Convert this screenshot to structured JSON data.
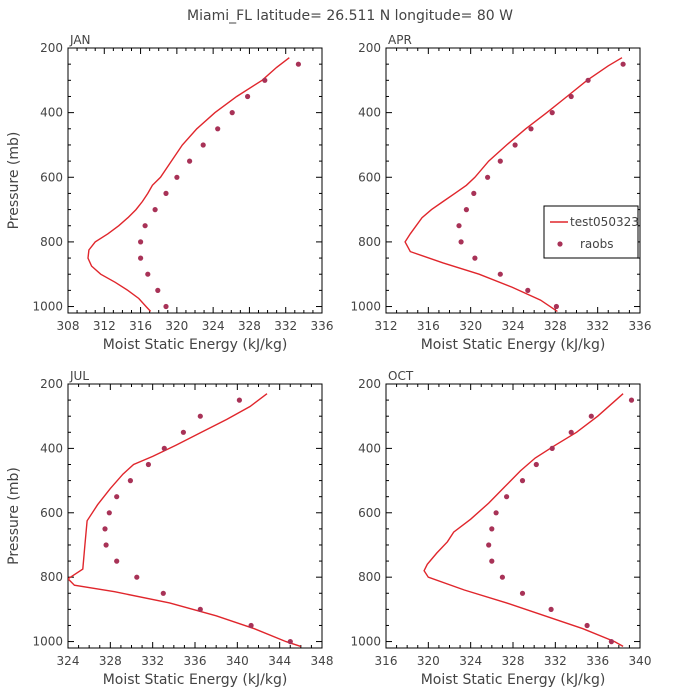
{
  "figure": {
    "title": "Miami_FL   latitude= 26.511 N longitude= 80 W"
  },
  "colors": {
    "model": "#e0262c",
    "obs": "#a83257",
    "axis": "#000000",
    "text": "#444444"
  },
  "legend": {
    "panel": "APR",
    "model_label": "test050323",
    "obs_label": "raobs"
  },
  "chart_data": [
    {
      "type": "line",
      "panel": "JAN",
      "xlabel": "Moist Static Energy (kJ/kg)",
      "ylabel": "Pressure (mb)",
      "xlim": [
        308,
        336
      ],
      "xticks": [
        308,
        312,
        316,
        320,
        324,
        328,
        332,
        336
      ],
      "ylim": [
        200,
        1020
      ],
      "yticks": [
        200,
        400,
        600,
        800,
        1000
      ],
      "series": [
        {
          "name": "test050323",
          "kind": "line",
          "points": [
            [
              317.1,
              1015
            ],
            [
              316.6,
              1000
            ],
            [
              315.8,
              975
            ],
            [
              314.6,
              950
            ],
            [
              313.2,
              925
            ],
            [
              311.6,
              900
            ],
            [
              310.6,
              875
            ],
            [
              310.2,
              850
            ],
            [
              310.3,
              825
            ],
            [
              311.0,
              800
            ],
            [
              312.4,
              775
            ],
            [
              313.6,
              750
            ],
            [
              314.6,
              725
            ],
            [
              315.5,
              700
            ],
            [
              316.2,
              675
            ],
            [
              316.8,
              650
            ],
            [
              317.3,
              625
            ],
            [
              318.2,
              600
            ],
            [
              319.4,
              550
            ],
            [
              320.6,
              500
            ],
            [
              322.2,
              450
            ],
            [
              324.2,
              400
            ],
            [
              326.6,
              350
            ],
            [
              329.4,
              300
            ],
            [
              331.0,
              260
            ],
            [
              332.4,
              230
            ]
          ]
        },
        {
          "name": "raobs",
          "kind": "scatter",
          "points": [
            [
              318.8,
              1000
            ],
            [
              317.9,
              950
            ],
            [
              316.8,
              900
            ],
            [
              316.0,
              850
            ],
            [
              316.0,
              800
            ],
            [
              316.5,
              750
            ],
            [
              317.6,
              700
            ],
            [
              318.8,
              650
            ],
            [
              320.0,
              600
            ],
            [
              321.4,
              550
            ],
            [
              322.9,
              500
            ],
            [
              324.5,
              450
            ],
            [
              326.1,
              400
            ],
            [
              327.8,
              350
            ],
            [
              329.7,
              300
            ],
            [
              333.4,
              250
            ]
          ]
        }
      ]
    },
    {
      "type": "line",
      "panel": "APR",
      "xlabel": "Moist Static Energy (kJ/kg)",
      "ylabel": "",
      "xlim": [
        312,
        336
      ],
      "xticks": [
        312,
        316,
        320,
        324,
        328,
        332,
        336
      ],
      "ylim": [
        200,
        1020
      ],
      "yticks": [
        200,
        400,
        600,
        800,
        1000
      ],
      "series": [
        {
          "name": "test050323",
          "kind": "line",
          "points": [
            [
              328.2,
              1015
            ],
            [
              326.6,
              980
            ],
            [
              323.9,
              940
            ],
            [
              320.8,
              900
            ],
            [
              317.4,
              865
            ],
            [
              314.3,
              830
            ],
            [
              313.8,
              800
            ],
            [
              314.3,
              775
            ],
            [
              315.4,
              725
            ],
            [
              316.3,
              700
            ],
            [
              317.4,
              675
            ],
            [
              318.5,
              650
            ],
            [
              319.6,
              625
            ],
            [
              320.4,
              600
            ],
            [
              321.7,
              550
            ],
            [
              323.4,
              500
            ],
            [
              325.2,
              450
            ],
            [
              327.2,
              400
            ],
            [
              329.1,
              350
            ],
            [
              331.0,
              300
            ],
            [
              333.0,
              255
            ],
            [
              334.3,
              230
            ]
          ]
        },
        {
          "name": "raobs",
          "kind": "scatter",
          "points": [
            [
              328.1,
              1000
            ],
            [
              325.4,
              950
            ],
            [
              322.8,
              900
            ],
            [
              320.4,
              850
            ],
            [
              319.1,
              800
            ],
            [
              318.9,
              750
            ],
            [
              319.6,
              700
            ],
            [
              320.3,
              650
            ],
            [
              321.6,
              600
            ],
            [
              322.8,
              550
            ],
            [
              324.2,
              500
            ],
            [
              325.7,
              450
            ],
            [
              327.7,
              400
            ],
            [
              329.5,
              350
            ],
            [
              331.1,
              300
            ],
            [
              334.4,
              250
            ]
          ]
        }
      ]
    },
    {
      "type": "line",
      "panel": "JUL",
      "xlabel": "Moist Static Energy (kJ/kg)",
      "ylabel": "Pressure (mb)",
      "xlim": [
        324,
        348
      ],
      "xticks": [
        324,
        328,
        332,
        336,
        340,
        344,
        348
      ],
      "ylim": [
        200,
        1020
      ],
      "yticks": [
        200,
        400,
        600,
        800,
        1000
      ],
      "series": [
        {
          "name": "test050323",
          "kind": "line",
          "points": [
            [
              346.0,
              1015
            ],
            [
              344.6,
              1000
            ],
            [
              341.6,
              960
            ],
            [
              338.0,
              920
            ],
            [
              333.6,
              880
            ],
            [
              328.4,
              845
            ],
            [
              324.6,
              825
            ],
            [
              324.0,
              805
            ],
            [
              325.4,
              775
            ],
            [
              325.6,
              700
            ],
            [
              325.8,
              625
            ],
            [
              326.8,
              575
            ],
            [
              328.0,
              525
            ],
            [
              329.2,
              480
            ],
            [
              330.2,
              450
            ],
            [
              332.0,
              425
            ],
            [
              334.2,
              390
            ],
            [
              336.6,
              350
            ],
            [
              339.0,
              310
            ],
            [
              341.2,
              270
            ],
            [
              342.8,
              230
            ]
          ]
        },
        {
          "name": "raobs",
          "kind": "scatter",
          "points": [
            [
              345.0,
              1000
            ],
            [
              341.3,
              950
            ],
            [
              336.5,
              900
            ],
            [
              333.0,
              850
            ],
            [
              330.5,
              800
            ],
            [
              328.6,
              750
            ],
            [
              327.6,
              700
            ],
            [
              327.5,
              650
            ],
            [
              327.9,
              600
            ],
            [
              328.6,
              550
            ],
            [
              329.9,
              500
            ],
            [
              331.6,
              450
            ],
            [
              333.1,
              400
            ],
            [
              334.9,
              350
            ],
            [
              336.5,
              300
            ],
            [
              340.2,
              250
            ]
          ]
        }
      ]
    },
    {
      "type": "line",
      "panel": "OCT",
      "xlabel": "Moist Static Energy (kJ/kg)",
      "ylabel": "",
      "xlim": [
        316,
        340
      ],
      "xticks": [
        316,
        320,
        324,
        328,
        332,
        336,
        340
      ],
      "ylim": [
        200,
        1020
      ],
      "yticks": [
        200,
        400,
        600,
        800,
        1000
      ],
      "series": [
        {
          "name": "test050323",
          "kind": "line",
          "points": [
            [
              338.4,
              1015
            ],
            [
              337.6,
              1000
            ],
            [
              334.6,
              960
            ],
            [
              331.0,
              920
            ],
            [
              327.4,
              880
            ],
            [
              323.4,
              840
            ],
            [
              320.0,
              800
            ],
            [
              319.6,
              780
            ],
            [
              319.9,
              760
            ],
            [
              320.8,
              725
            ],
            [
              321.8,
              690
            ],
            [
              322.4,
              660
            ],
            [
              324.0,
              620
            ],
            [
              325.7,
              570
            ],
            [
              327.2,
              520
            ],
            [
              328.7,
              470
            ],
            [
              330.1,
              430
            ],
            [
              332.0,
              390
            ],
            [
              334.0,
              350
            ],
            [
              336.0,
              300
            ],
            [
              338.4,
              230
            ]
          ]
        },
        {
          "name": "raobs",
          "kind": "scatter",
          "points": [
            [
              337.3,
              1000
            ],
            [
              335.0,
              950
            ],
            [
              331.6,
              900
            ],
            [
              328.9,
              850
            ],
            [
              327.0,
              800
            ],
            [
              326.0,
              750
            ],
            [
              325.7,
              700
            ],
            [
              326.0,
              650
            ],
            [
              326.4,
              600
            ],
            [
              327.4,
              550
            ],
            [
              328.9,
              500
            ],
            [
              330.2,
              450
            ],
            [
              331.7,
              400
            ],
            [
              333.5,
              350
            ],
            [
              335.4,
              300
            ],
            [
              339.2,
              250
            ]
          ]
        }
      ]
    }
  ]
}
